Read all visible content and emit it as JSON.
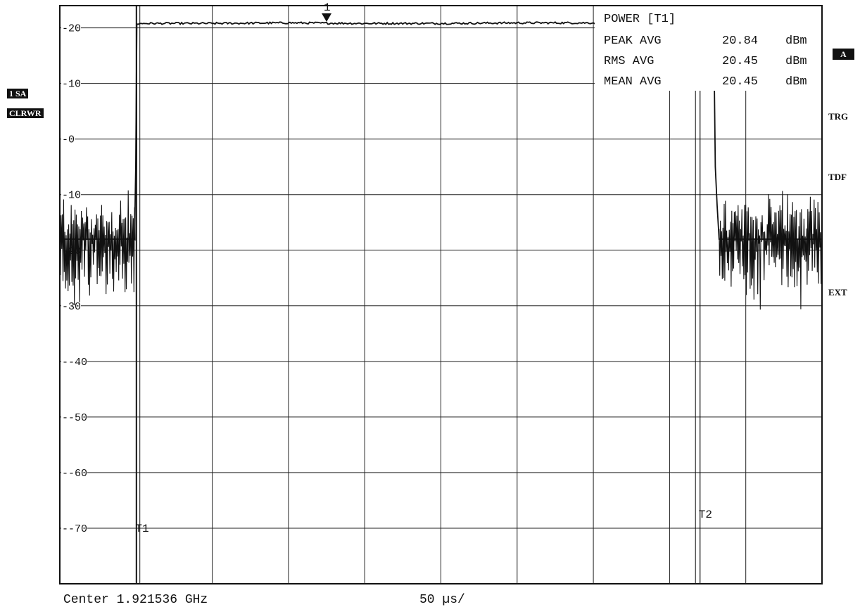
{
  "left_labels": {
    "trace_label": "1 SA",
    "mode_label": "CLRWR"
  },
  "right_labels": {
    "badge_a": "A",
    "trg": "TRG",
    "tdf": "TDF",
    "ext": "EXT"
  },
  "footer": {
    "center_text": "Center 1.921536 GHz",
    "sweep_text": "50 µs/"
  },
  "chart_data": {
    "type": "line",
    "title": "",
    "xlabel": "",
    "ylabel": "",
    "x_divisions": 10,
    "x_unit": "µs",
    "x_per_div": 50,
    "xlim": [
      0,
      500
    ],
    "ylim": [
      -80,
      24
    ],
    "y_ticks": [
      20,
      10,
      0,
      -10,
      -20,
      -30,
      -40,
      -50,
      -60,
      -70
    ],
    "y_tick_labels": [
      "20",
      "10",
      "0",
      "10",
      "20",
      "30",
      "-40",
      "-50",
      "-60",
      "-70"
    ],
    "grid": true,
    "series": [
      {
        "x": [
          0,
          49,
          49.8,
          50.5,
          55,
          100,
          150,
          200,
          250,
          300,
          350,
          400,
          428,
          429.2,
          430,
          431.2,
          432.5,
          500
        ],
        "values": [
          -18,
          -18,
          -5,
          20.7,
          20.8,
          20.8,
          20.9,
          20.8,
          20.8,
          20.9,
          20.9,
          20.8,
          20.7,
          15,
          -5,
          -12,
          -18,
          -18
        ],
        "noise_before": {
          "x_range": [
            0,
            49.5
          ],
          "mean": -18,
          "min": -35,
          "max": -9
        },
        "noise_after": {
          "x_range": [
            432.5,
            500
          ],
          "mean": -18,
          "min": -33,
          "max": -9
        }
      }
    ],
    "marker": {
      "label": "1",
      "x": 175,
      "y": 20.84
    },
    "gate_lines": [
      {
        "label": "T1",
        "x": 50.5,
        "label_y": -70
      },
      {
        "label": "T2",
        "x": 420,
        "label_y": -67.5
      }
    ],
    "extra_vlines_x": [
      52.5,
      417
    ],
    "power_table": {
      "header": "POWER [T1]",
      "rows": [
        {
          "name": "PEAK AVG",
          "value": "20.84",
          "unit": "dBm"
        },
        {
          "name": "RMS AVG",
          "value": "20.45",
          "unit": "dBm"
        },
        {
          "name": "MEAN AVG",
          "value": "20.45",
          "unit": "dBm"
        }
      ]
    }
  }
}
